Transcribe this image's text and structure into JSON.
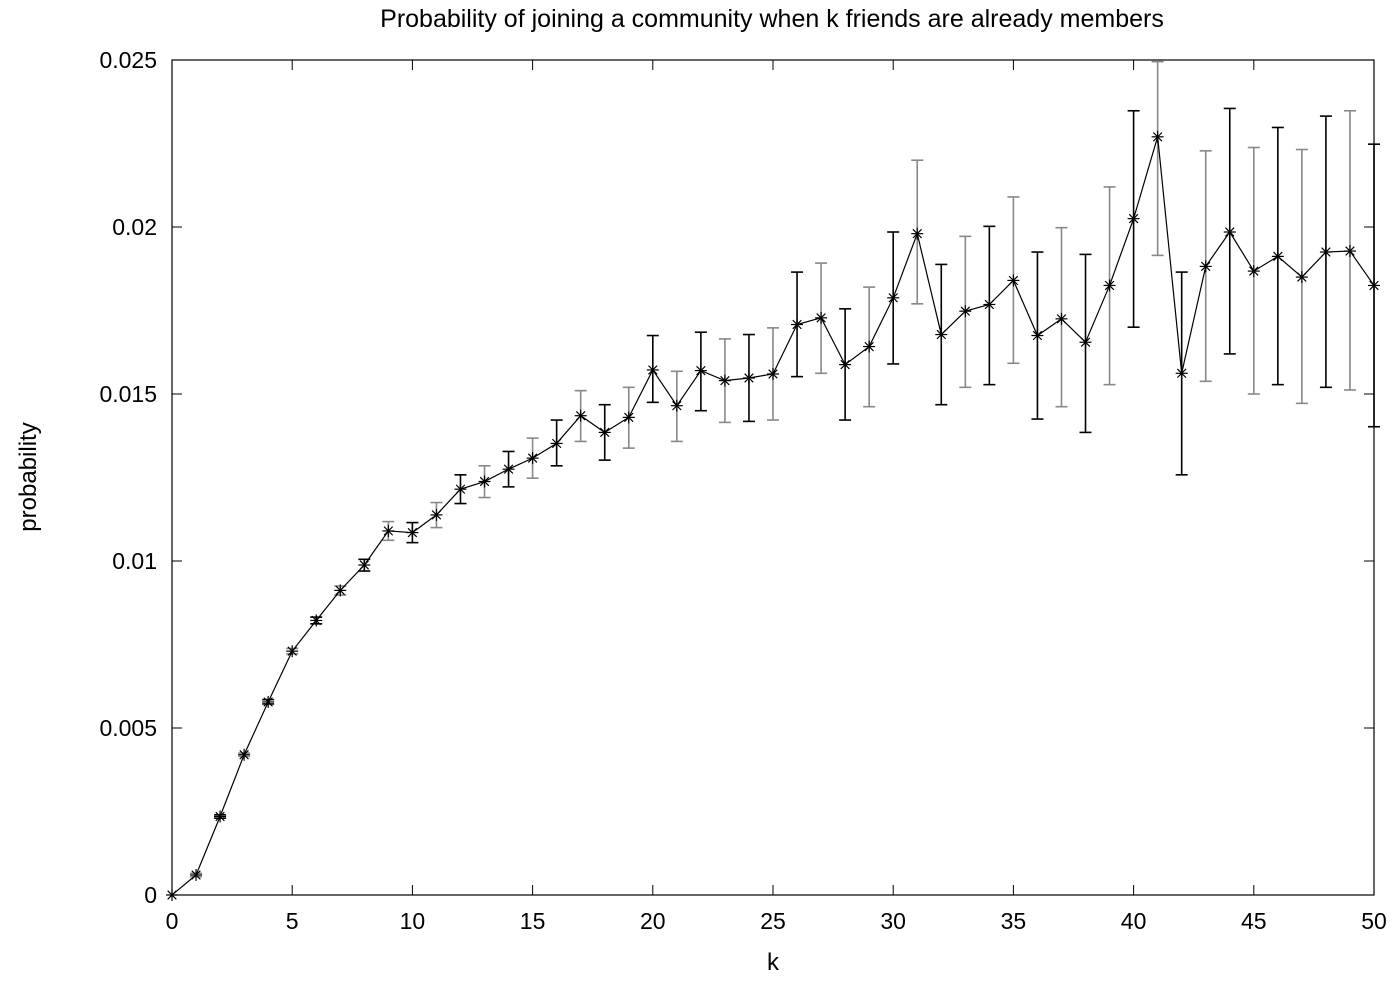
{
  "chart_data": {
    "type": "line",
    "title": "Probability of joining a community when k friends are already members",
    "xlabel": "k",
    "ylabel": "probability",
    "xlim": [
      0,
      50
    ],
    "ylim": [
      0,
      0.025
    ],
    "grid": false,
    "legend": "none",
    "x_ticks": [
      0,
      5,
      10,
      15,
      20,
      25,
      30,
      35,
      40,
      45,
      50
    ],
    "x_tick_labels": [
      "0",
      "5",
      "10",
      "15",
      "20",
      "25",
      "30",
      "35",
      "40",
      "45",
      "50"
    ],
    "y_ticks": [
      0,
      0.005,
      0.01,
      0.015,
      0.02,
      0.025
    ],
    "y_tick_labels": [
      "0",
      "0.005",
      "0.01",
      "0.015",
      "0.02",
      "0.025"
    ],
    "marker": "asterisk",
    "line_color": "#000000",
    "errorbar_colors": [
      "#000000",
      "#888888"
    ],
    "series": [
      {
        "x": [
          0,
          1,
          2,
          3,
          4,
          5,
          6,
          7,
          8,
          9,
          10,
          11,
          12,
          13,
          14,
          15,
          16,
          17,
          18,
          19,
          20,
          21,
          22,
          23,
          24,
          25,
          26,
          27,
          28,
          29,
          30,
          31,
          32,
          33,
          34,
          35,
          36,
          37,
          38,
          39,
          40,
          41,
          42,
          43,
          44,
          45,
          46,
          47,
          48,
          49,
          50
        ],
        "y": [
          0.0,
          0.0006,
          0.00235,
          0.0042,
          0.00578,
          0.0073,
          0.00822,
          0.00912,
          0.00988,
          0.0109,
          0.01085,
          0.01138,
          0.01215,
          0.01238,
          0.01275,
          0.01308,
          0.01352,
          0.01435,
          0.01385,
          0.0143,
          0.01572,
          0.01465,
          0.0157,
          0.0154,
          0.01548,
          0.0156,
          0.01708,
          0.01728,
          0.01588,
          0.01642,
          0.01788,
          0.0198,
          0.01678,
          0.01748,
          0.01768,
          0.0184,
          0.01675,
          0.01725,
          0.01655,
          0.01825,
          0.02025,
          0.0227,
          0.01562,
          0.01882,
          0.01985,
          0.01868,
          0.01912,
          0.0185,
          0.01925,
          0.01928,
          0.01825
        ],
        "err_low": [
          0.0,
          0.00055,
          0.0023,
          0.00415,
          0.00572,
          0.00722,
          0.00812,
          0.00898,
          0.0097,
          0.01062,
          0.01055,
          0.011,
          0.01172,
          0.0119,
          0.01222,
          0.01248,
          0.01285,
          0.01358,
          0.01302,
          0.01338,
          0.01475,
          0.01358,
          0.0145,
          0.01415,
          0.01418,
          0.01422,
          0.01552,
          0.01562,
          0.01422,
          0.01462,
          0.0159,
          0.0177,
          0.01468,
          0.0152,
          0.01528,
          0.01592,
          0.01425,
          0.01462,
          0.01385,
          0.01528,
          0.017,
          0.01915,
          0.01258,
          0.01538,
          0.0162,
          0.015,
          0.01528,
          0.01472,
          0.0152,
          0.01512,
          0.01402
        ],
        "err_high": [
          0.0,
          0.00065,
          0.0024,
          0.00425,
          0.00585,
          0.00738,
          0.00832,
          0.00925,
          0.01005,
          0.01118,
          0.01115,
          0.01175,
          0.01258,
          0.01285,
          0.01328,
          0.01368,
          0.01422,
          0.0151,
          0.01468,
          0.0152,
          0.01675,
          0.01568,
          0.01685,
          0.01665,
          0.01678,
          0.01698,
          0.01865,
          0.01892,
          0.01755,
          0.0182,
          0.01985,
          0.022,
          0.01888,
          0.01972,
          0.02002,
          0.0209,
          0.01925,
          0.01998,
          0.01918,
          0.0212,
          0.02348,
          0.02495,
          0.01865,
          0.02228,
          0.02355,
          0.02238,
          0.02298,
          0.02232,
          0.02332,
          0.02348,
          0.02248
        ]
      }
    ]
  }
}
